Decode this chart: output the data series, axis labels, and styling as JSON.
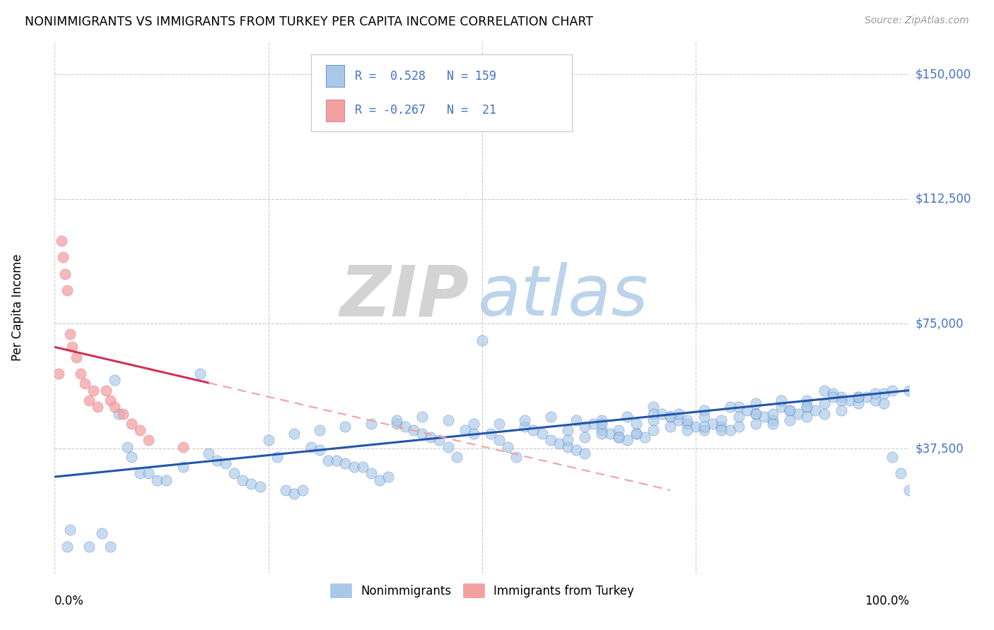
{
  "title": "NONIMMIGRANTS VS IMMIGRANTS FROM TURKEY PER CAPITA INCOME CORRELATION CHART",
  "source": "Source: ZipAtlas.com",
  "ylabel": "Per Capita Income",
  "xlim": [
    0.0,
    1.0
  ],
  "ylim": [
    0,
    160000
  ],
  "blue_color": "#a8c8e8",
  "pink_color": "#f4a0a0",
  "blue_line_color": "#2255aa",
  "pink_line_color": "#cc3355",
  "pink_dash_color": "#f4a0a0",
  "watermark_zip": "ZIP",
  "watermark_atlas": "atlas",
  "ytick_vals": [
    0,
    37500,
    75000,
    112500,
    150000
  ],
  "ytick_labels": [
    "",
    "$37,500",
    "$75,000",
    "$112,500",
    "$150,000"
  ],
  "blue_trend_x0": 0.0,
  "blue_trend_y0": 29000,
  "blue_trend_x1": 1.0,
  "blue_trend_y1": 55000,
  "pink_trend_x0": 0.0,
  "pink_trend_y0": 68000,
  "pink_trend_x1": 0.72,
  "pink_trend_y1": 25000,
  "nonimmigrants_x": [
    0.015,
    0.018,
    0.04,
    0.055,
    0.065,
    0.07,
    0.075,
    0.085,
    0.09,
    0.1,
    0.11,
    0.12,
    0.13,
    0.15,
    0.17,
    0.18,
    0.19,
    0.2,
    0.21,
    0.22,
    0.23,
    0.24,
    0.26,
    0.27,
    0.28,
    0.29,
    0.3,
    0.31,
    0.32,
    0.33,
    0.34,
    0.35,
    0.36,
    0.37,
    0.38,
    0.39,
    0.4,
    0.41,
    0.42,
    0.43,
    0.44,
    0.45,
    0.46,
    0.47,
    0.48,
    0.49,
    0.5,
    0.51,
    0.52,
    0.53,
    0.54,
    0.55,
    0.56,
    0.57,
    0.58,
    0.59,
    0.6,
    0.61,
    0.62,
    0.63,
    0.64,
    0.65,
    0.66,
    0.67,
    0.68,
    0.69,
    0.7,
    0.71,
    0.72,
    0.73,
    0.74,
    0.75,
    0.76,
    0.77,
    0.78,
    0.79,
    0.8,
    0.81,
    0.82,
    0.83,
    0.84,
    0.85,
    0.86,
    0.87,
    0.88,
    0.89,
    0.9,
    0.91,
    0.92,
    0.93,
    0.94,
    0.95,
    0.96,
    0.97,
    0.98,
    0.99,
    1.0,
    0.25,
    0.28,
    0.31,
    0.34,
    0.37,
    0.4,
    0.43,
    0.46,
    0.49,
    0.52,
    0.55,
    0.58,
    0.61,
    0.64,
    0.67,
    0.7,
    0.73,
    0.76,
    0.79,
    0.82,
    0.85,
    0.88,
    0.91,
    0.94,
    0.97,
    1.0,
    0.6,
    0.62,
    0.64,
    0.66,
    0.68,
    0.7,
    0.72,
    0.74,
    0.76,
    0.78,
    0.8,
    0.82,
    0.84,
    0.86,
    0.88,
    0.9,
    0.92,
    0.94,
    0.96,
    0.98,
    0.6,
    0.62,
    0.64,
    0.66,
    0.68,
    0.7,
    0.72,
    0.74,
    0.76,
    0.78,
    0.8,
    0.82,
    0.84,
    0.86,
    0.88,
    0.9,
    0.92
  ],
  "nonimmigrants_y": [
    8000,
    13000,
    8000,
    12000,
    8000,
    58000,
    48000,
    38000,
    35000,
    30000,
    30000,
    28000,
    28000,
    32000,
    60000,
    36000,
    34000,
    33000,
    30000,
    28000,
    27000,
    26000,
    35000,
    25000,
    24000,
    25000,
    38000,
    37000,
    34000,
    34000,
    33000,
    32000,
    32000,
    30000,
    28000,
    29000,
    45000,
    44000,
    43000,
    42000,
    41000,
    40000,
    38000,
    35000,
    43000,
    42000,
    70000,
    42000,
    40000,
    38000,
    35000,
    44000,
    43000,
    42000,
    40000,
    39000,
    38000,
    37000,
    36000,
    45000,
    43000,
    42000,
    41000,
    40000,
    42000,
    41000,
    50000,
    48000,
    47000,
    46000,
    45000,
    44000,
    43000,
    45000,
    44000,
    43000,
    50000,
    49000,
    48000,
    47000,
    46000,
    50000,
    49000,
    48000,
    50000,
    49000,
    55000,
    54000,
    53000,
    52000,
    51000,
    53000,
    52000,
    51000,
    35000,
    30000,
    25000,
    40000,
    42000,
    43000,
    44000,
    45000,
    46000,
    47000,
    46000,
    45000,
    45000,
    46000,
    47000,
    46000,
    46000,
    47000,
    48000,
    48000,
    49000,
    50000,
    51000,
    52000,
    52000,
    53000,
    53000,
    54000,
    55000,
    43000,
    44000,
    45000,
    43000,
    45000,
    46000,
    47000,
    46000,
    47000,
    46000,
    47000,
    48000,
    48000,
    49000,
    50000,
    51000,
    52000,
    53000,
    54000,
    55000,
    40000,
    41000,
    42000,
    41000,
    42000,
    43000,
    44000,
    43000,
    44000,
    43000,
    44000,
    45000,
    45000,
    46000,
    47000,
    48000,
    49000
  ],
  "immigrants_x": [
    0.005,
    0.008,
    0.01,
    0.012,
    0.015,
    0.018,
    0.02,
    0.025,
    0.03,
    0.035,
    0.04,
    0.045,
    0.05,
    0.06,
    0.065,
    0.07,
    0.08,
    0.09,
    0.1,
    0.11,
    0.15
  ],
  "immigrants_y": [
    60000,
    100000,
    95000,
    90000,
    85000,
    72000,
    68000,
    65000,
    60000,
    57000,
    52000,
    55000,
    50000,
    55000,
    52000,
    50000,
    48000,
    45000,
    43000,
    40000,
    38000
  ]
}
